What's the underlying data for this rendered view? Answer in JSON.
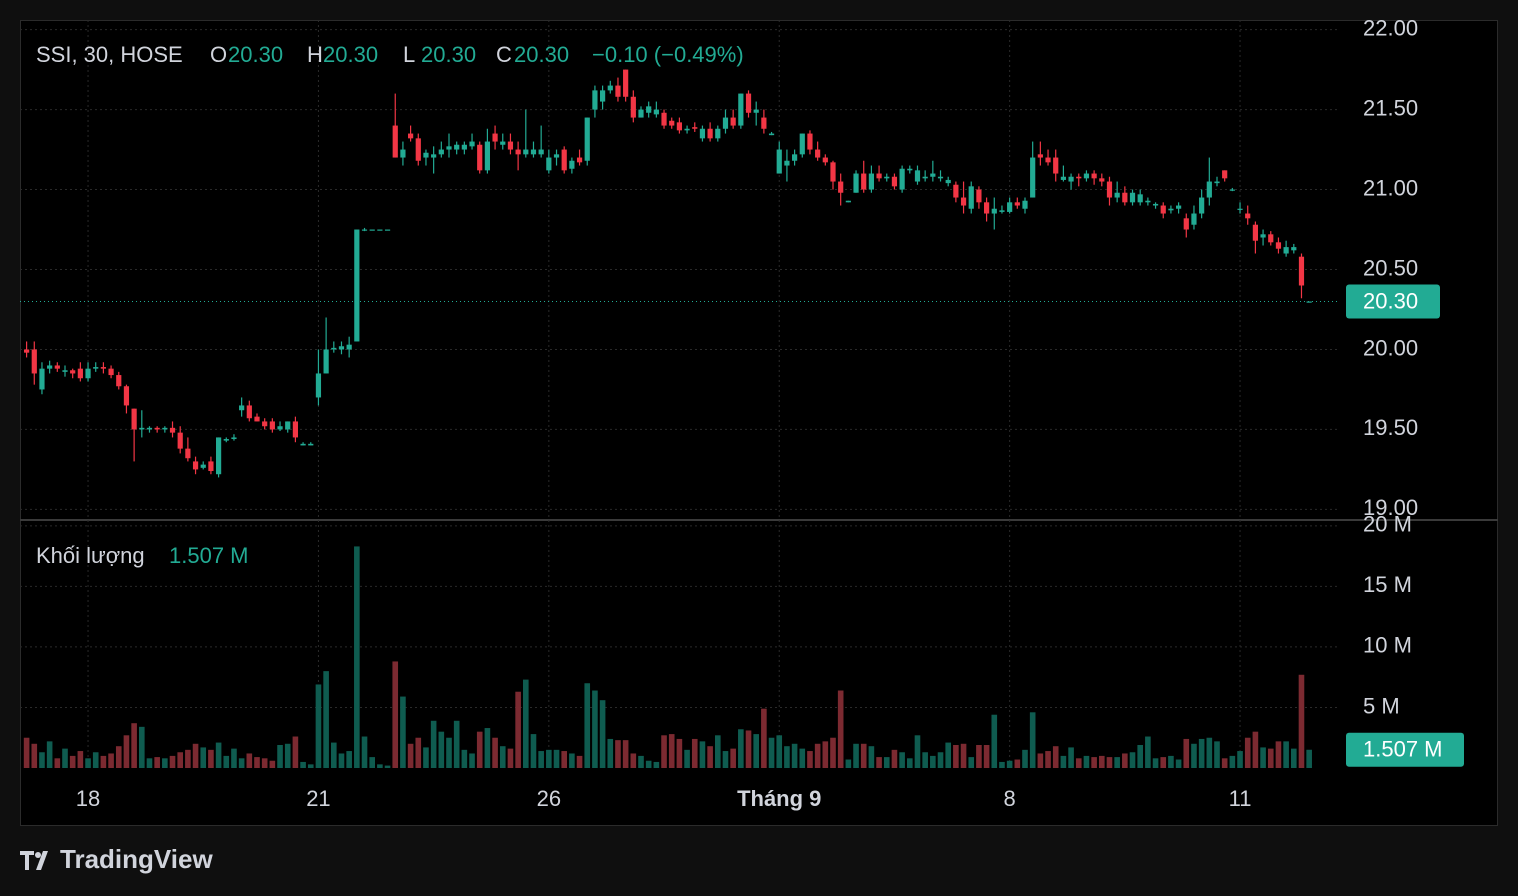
{
  "chart_data": {
    "type": "candlestick",
    "legend": {
      "title": "SSI, 30, HOSE",
      "items": [
        {
          "key": "O",
          "value": "20.30"
        },
        {
          "key": "H",
          "value": "20.30"
        },
        {
          "key": "L",
          "value": "20.30"
        },
        {
          "key": "C",
          "value": "20.30"
        }
      ],
      "change": "−0.10 (−0.49%)"
    },
    "volume_title": "Khối lượng",
    "volume_value": "1.507 M",
    "footer": "TradingView",
    "up_color": "#22ab94",
    "down_color": "#f23645",
    "volume_up_color": "#0f5c50",
    "volume_down_color": "#7c2a31",
    "grid": true,
    "ylim": [
      18.94,
      22.06
    ],
    "yticks": [
      {
        "value": 19,
        "label": "19.00"
      },
      {
        "value": 19.5,
        "label": "19.50"
      },
      {
        "value": 20,
        "label": "20.00"
      },
      {
        "value": 20.5,
        "label": "20.50"
      },
      {
        "value": 21,
        "label": "21.00"
      },
      {
        "value": 21.5,
        "label": "21.50"
      },
      {
        "value": 22,
        "label": "22.00"
      }
    ],
    "last_price": {
      "value": 20.3,
      "label": "20.30"
    },
    "volume_ylim": [
      0,
      20.4
    ],
    "volume_yticks": [
      {
        "value": 5,
        "label": "5 M"
      },
      {
        "value": 10,
        "label": "10 M"
      },
      {
        "value": 15,
        "label": "15 M"
      },
      {
        "value": 20,
        "label": "20 M"
      }
    ],
    "last_volume": {
      "value": 1.507,
      "label": "1.507 M"
    },
    "categories": [
      null,
      null,
      null,
      null,
      null,
      null,
      null,
      null,
      "18",
      null,
      null,
      null,
      null,
      null,
      null,
      null,
      null,
      null,
      null,
      null,
      null,
      null,
      null,
      null,
      null,
      null,
      null,
      null,
      null,
      null,
      null,
      null,
      null,
      null,
      null,
      null,
      null,
      null,
      "21",
      null,
      null,
      null,
      null,
      null,
      null,
      null,
      null,
      null,
      null,
      null,
      null,
      null,
      null,
      null,
      null,
      null,
      null,
      null,
      null,
      null,
      null,
      null,
      null,
      null,
      null,
      null,
      null,
      null,
      "26",
      null,
      null,
      null,
      null,
      null,
      null,
      null,
      null,
      null,
      null,
      null,
      null,
      null,
      null,
      null,
      null,
      null,
      null,
      null,
      null,
      null,
      null,
      null,
      null,
      null,
      null,
      null,
      null,
      null,
      "Tháng 9",
      null,
      null,
      null,
      null,
      null,
      null,
      null,
      null,
      null,
      null,
      null,
      null,
      null,
      null,
      null,
      null,
      null,
      null,
      null,
      null,
      null,
      null,
      null,
      null,
      null,
      null,
      null,
      null,
      null,
      "8",
      null,
      null,
      null,
      null,
      null,
      null,
      null,
      null,
      null,
      null,
      null,
      null,
      null,
      null,
      null,
      null,
      null,
      null,
      null,
      null,
      null,
      null,
      null,
      null,
      null,
      null,
      null,
      null,
      null,
      "11",
      null,
      null,
      null,
      null,
      null,
      null,
      null,
      null,
      null
    ],
    "ohlc": [
      [
        20.0,
        20.05,
        19.95,
        19.98
      ],
      [
        20.0,
        20.05,
        19.78,
        19.85
      ],
      [
        19.75,
        19.92,
        19.72,
        19.88
      ],
      [
        19.88,
        19.93,
        19.85,
        19.9
      ],
      [
        19.9,
        19.92,
        19.86,
        19.88
      ],
      [
        19.86,
        19.9,
        19.83,
        19.87
      ],
      [
        19.87,
        19.88,
        19.82,
        19.85
      ],
      [
        19.88,
        19.92,
        19.8,
        19.82
      ],
      [
        19.82,
        19.92,
        19.8,
        19.88
      ],
      [
        19.88,
        19.92,
        19.86,
        19.89
      ],
      [
        19.89,
        19.92,
        19.85,
        19.88
      ],
      [
        19.88,
        19.9,
        19.82,
        19.84
      ],
      [
        19.84,
        19.86,
        19.75,
        19.77
      ],
      [
        19.77,
        19.78,
        19.6,
        19.65
      ],
      [
        19.63,
        19.63,
        19.3,
        19.5
      ],
      [
        19.5,
        19.62,
        19.45,
        19.51
      ],
      [
        19.5,
        19.52,
        19.48,
        19.51
      ],
      [
        19.51,
        19.52,
        19.48,
        19.5
      ],
      [
        19.5,
        19.52,
        19.48,
        19.51
      ],
      [
        19.51,
        19.55,
        19.45,
        19.48
      ],
      [
        19.48,
        19.52,
        19.35,
        19.38
      ],
      [
        19.38,
        19.45,
        19.3,
        19.32
      ],
      [
        19.3,
        19.33,
        19.22,
        19.25
      ],
      [
        19.26,
        19.3,
        19.25,
        19.28
      ],
      [
        19.3,
        19.33,
        19.22,
        19.24
      ],
      [
        19.22,
        19.45,
        19.2,
        19.45
      ],
      [
        19.43,
        19.45,
        19.42,
        19.44
      ],
      [
        19.44,
        19.47,
        19.43,
        19.45
      ],
      [
        19.62,
        19.7,
        19.58,
        19.65
      ],
      [
        19.65,
        19.68,
        19.55,
        19.57
      ],
      [
        19.58,
        19.6,
        19.55,
        19.55
      ],
      [
        19.55,
        19.57,
        19.5,
        19.52
      ],
      [
        19.55,
        19.57,
        19.48,
        19.5
      ],
      [
        19.5,
        19.55,
        19.49,
        19.52
      ],
      [
        19.5,
        19.55,
        19.48,
        19.55
      ],
      [
        19.55,
        19.58,
        19.42,
        19.45
      ],
      [
        19.4,
        19.42,
        19.4,
        19.41
      ],
      [
        19.4,
        19.42,
        19.4,
        19.41
      ],
      [
        19.7,
        20.0,
        19.65,
        19.85
      ],
      [
        19.85,
        20.2,
        19.85,
        20.0
      ],
      [
        20.0,
        20.05,
        19.98,
        20.01
      ],
      [
        20.0,
        20.05,
        19.97,
        20.02
      ],
      [
        20.0,
        20.08,
        19.95,
        20.03
      ],
      [
        20.05,
        20.75,
        20.05,
        20.75
      ],
      [
        20.75,
        20.76,
        20.74,
        20.75
      ],
      [
        20.75,
        20.75,
        20.75,
        20.75
      ],
      [
        20.75,
        20.75,
        20.75,
        20.75
      ],
      [
        20.75,
        20.75,
        20.75,
        20.75
      ],
      [
        21.4,
        21.6,
        21.2,
        21.2
      ],
      [
        21.2,
        21.3,
        21.15,
        21.25
      ],
      [
        21.35,
        21.4,
        21.3,
        21.32
      ],
      [
        21.32,
        21.35,
        21.15,
        21.18
      ],
      [
        21.2,
        21.25,
        21.15,
        21.23
      ],
      [
        21.2,
        21.27,
        21.1,
        21.22
      ],
      [
        21.22,
        21.3,
        21.2,
        21.25
      ],
      [
        21.25,
        21.35,
        21.2,
        21.27
      ],
      [
        21.25,
        21.3,
        21.22,
        21.28
      ],
      [
        21.25,
        21.3,
        21.22,
        21.28
      ],
      [
        21.27,
        21.35,
        21.25,
        21.3
      ],
      [
        21.28,
        21.3,
        21.1,
        21.12
      ],
      [
        21.12,
        21.38,
        21.1,
        21.3
      ],
      [
        21.35,
        21.4,
        21.25,
        21.3
      ],
      [
        21.28,
        21.35,
        21.25,
        21.3
      ],
      [
        21.3,
        21.35,
        21.22,
        21.25
      ],
      [
        21.25,
        21.3,
        21.12,
        21.22
      ],
      [
        21.22,
        21.5,
        21.2,
        21.25
      ],
      [
        21.22,
        21.3,
        21.2,
        21.25
      ],
      [
        21.22,
        21.4,
        21.2,
        21.25
      ],
      [
        21.12,
        21.25,
        21.1,
        21.2
      ],
      [
        21.2,
        21.25,
        21.15,
        21.22
      ],
      [
        21.25,
        21.27,
        21.1,
        21.12
      ],
      [
        21.13,
        21.2,
        21.1,
        21.18
      ],
      [
        21.2,
        21.25,
        21.15,
        21.17
      ],
      [
        21.18,
        21.45,
        21.15,
        21.45
      ],
      [
        21.5,
        21.65,
        21.45,
        21.62
      ],
      [
        21.55,
        21.65,
        21.5,
        21.62
      ],
      [
        21.62,
        21.68,
        21.6,
        21.65
      ],
      [
        21.65,
        21.7,
        21.55,
        21.58
      ],
      [
        21.75,
        21.75,
        21.55,
        21.58
      ],
      [
        21.58,
        21.62,
        21.42,
        21.45
      ],
      [
        21.45,
        21.52,
        21.45,
        21.5
      ],
      [
        21.48,
        21.55,
        21.45,
        21.52
      ],
      [
        21.47,
        21.55,
        21.45,
        21.5
      ],
      [
        21.48,
        21.5,
        21.38,
        21.4
      ],
      [
        21.43,
        21.45,
        21.38,
        21.4
      ],
      [
        21.42,
        21.45,
        21.35,
        21.37
      ],
      [
        21.37,
        21.4,
        21.35,
        21.38
      ],
      [
        21.39,
        21.42,
        21.36,
        21.38
      ],
      [
        21.32,
        21.4,
        21.3,
        21.38
      ],
      [
        21.38,
        21.42,
        21.3,
        21.32
      ],
      [
        21.32,
        21.4,
        21.3,
        21.38
      ],
      [
        21.38,
        21.5,
        21.35,
        21.45
      ],
      [
        21.45,
        21.5,
        21.38,
        21.4
      ],
      [
        21.4,
        21.6,
        21.38,
        21.6
      ],
      [
        21.6,
        21.62,
        21.45,
        21.48
      ],
      [
        21.48,
        21.55,
        21.4,
        21.5
      ],
      [
        21.45,
        21.5,
        21.35,
        21.38
      ],
      [
        21.34,
        21.36,
        21.34,
        21.35
      ],
      [
        21.1,
        21.3,
        21.1,
        21.25
      ],
      [
        21.15,
        21.25,
        21.05,
        21.18
      ],
      [
        21.18,
        21.25,
        21.15,
        21.22
      ],
      [
        21.22,
        21.35,
        21.2,
        21.35
      ],
      [
        21.35,
        21.37,
        21.22,
        21.25
      ],
      [
        21.25,
        21.3,
        21.18,
        21.2
      ],
      [
        21.2,
        21.22,
        21.15,
        21.17
      ],
      [
        21.17,
        21.18,
        21.0,
        21.05
      ],
      [
        21.05,
        21.1,
        20.9,
        20.98
      ],
      [
        20.92,
        20.93,
        20.92,
        20.93
      ],
      [
        20.98,
        21.12,
        20.98,
        21.1
      ],
      [
        21.1,
        21.18,
        20.98,
        21.0
      ],
      [
        21.0,
        21.15,
        20.98,
        21.1
      ],
      [
        21.1,
        21.15,
        21.05,
        21.07
      ],
      [
        21.07,
        21.1,
        21.05,
        21.08
      ],
      [
        21.08,
        21.1,
        21.0,
        21.02
      ],
      [
        21.0,
        21.15,
        20.98,
        21.13
      ],
      [
        21.12,
        21.15,
        21.1,
        21.13
      ],
      [
        21.05,
        21.15,
        21.03,
        21.12
      ],
      [
        21.07,
        21.12,
        21.05,
        21.08
      ],
      [
        21.08,
        21.18,
        21.05,
        21.1
      ],
      [
        21.07,
        21.12,
        21.05,
        21.08
      ],
      [
        21.04,
        21.08,
        21.02,
        21.06
      ],
      [
        21.03,
        21.05,
        20.92,
        20.95
      ],
      [
        20.95,
        21.05,
        20.85,
        20.9
      ],
      [
        20.88,
        21.05,
        20.85,
        21.02
      ],
      [
        21.0,
        21.02,
        20.88,
        20.92
      ],
      [
        20.92,
        20.95,
        20.8,
        20.85
      ],
      [
        20.85,
        20.95,
        20.75,
        20.88
      ],
      [
        20.86,
        20.9,
        20.85,
        20.87
      ],
      [
        20.86,
        20.95,
        20.85,
        20.92
      ],
      [
        20.92,
        20.95,
        20.88,
        20.9
      ],
      [
        20.88,
        20.95,
        20.85,
        20.93
      ],
      [
        20.95,
        21.3,
        20.95,
        21.2
      ],
      [
        21.22,
        21.3,
        21.15,
        21.2
      ],
      [
        21.2,
        21.25,
        21.15,
        21.17
      ],
      [
        21.2,
        21.25,
        21.05,
        21.1
      ],
      [
        21.06,
        21.15,
        21.05,
        21.08
      ],
      [
        21.05,
        21.1,
        21.0,
        21.08
      ],
      [
        21.08,
        21.1,
        21.02,
        21.07
      ],
      [
        21.07,
        21.12,
        21.05,
        21.1
      ],
      [
        21.1,
        21.12,
        21.03,
        21.07
      ],
      [
        21.07,
        21.1,
        21.02,
        21.05
      ],
      [
        21.05,
        21.08,
        20.9,
        20.95
      ],
      [
        20.95,
        21.05,
        20.92,
        20.98
      ],
      [
        20.98,
        21.02,
        20.9,
        20.92
      ],
      [
        20.92,
        21.0,
        20.9,
        20.98
      ],
      [
        20.92,
        21.0,
        20.9,
        20.97
      ],
      [
        20.92,
        20.95,
        20.9,
        20.93
      ],
      [
        20.9,
        20.92,
        20.88,
        20.91
      ],
      [
        20.9,
        20.92,
        20.82,
        20.85
      ],
      [
        20.87,
        20.9,
        20.85,
        20.88
      ],
      [
        20.88,
        20.92,
        20.85,
        20.9
      ],
      [
        20.82,
        20.85,
        20.7,
        20.75
      ],
      [
        20.78,
        20.9,
        20.75,
        20.85
      ],
      [
        20.85,
        21.0,
        20.82,
        20.95
      ],
      [
        20.95,
        21.2,
        20.9,
        21.05
      ],
      [
        21.04,
        21.08,
        21.02,
        21.05
      ],
      [
        21.12,
        21.12,
        21.05,
        21.07
      ],
      [
        21.0,
        21.01,
        20.99,
        21.0
      ],
      [
        20.88,
        20.92,
        20.85,
        20.88
      ],
      [
        20.85,
        20.9,
        20.78,
        20.82
      ],
      [
        20.78,
        20.8,
        20.6,
        20.68
      ],
      [
        20.7,
        20.75,
        20.65,
        20.72
      ],
      [
        20.72,
        20.74,
        20.65,
        20.67
      ],
      [
        20.67,
        20.7,
        20.6,
        20.63
      ],
      [
        20.6,
        20.68,
        20.58,
        20.64
      ],
      [
        20.62,
        20.66,
        20.6,
        20.64
      ],
      [
        20.58,
        20.6,
        20.32,
        20.4
      ],
      [
        20.3,
        20.3,
        20.3,
        20.3
      ]
    ],
    "volume": [
      2.5,
      2.0,
      1.3,
      2.2,
      0.8,
      1.6,
      1.0,
      1.4,
      0.8,
      1.3,
      1.0,
      1.2,
      1.8,
      2.7,
      3.7,
      3.4,
      0.8,
      0.9,
      0.8,
      1.0,
      1.3,
      1.5,
      2.0,
      1.7,
      1.5,
      2.1,
      1.0,
      1.6,
      0.8,
      1.2,
      0.9,
      0.8,
      0.6,
      1.9,
      2.0,
      2.6,
      0.5,
      0.3,
      6.9,
      8.0,
      2.1,
      1.2,
      1.4,
      18.3,
      2.6,
      0.9,
      0.3,
      0.2,
      8.8,
      5.9,
      2.0,
      2.5,
      1.7,
      3.9,
      3.0,
      2.5,
      3.9,
      1.5,
      1.2,
      3.0,
      3.3,
      2.5,
      1.8,
      1.6,
      6.3,
      7.3,
      2.8,
      1.4,
      1.5,
      1.5,
      1.4,
      1.2,
      1.0,
      7.0,
      6.4,
      5.6,
      2.4,
      2.3,
      2.3,
      1.2,
      1.0,
      0.6,
      0.5,
      2.7,
      2.8,
      2.4,
      1.5,
      2.4,
      2.2,
      1.8,
      2.7,
      1.4,
      1.6,
      3.2,
      3.1,
      2.8,
      4.9,
      2.5,
      2.7,
      1.8,
      2.0,
      1.6,
      1.4,
      2.0,
      2.2,
      2.5,
      6.4,
      0.7,
      2.0,
      2.0,
      1.8,
      0.9,
      0.9,
      1.5,
      1.3,
      0.8,
      2.7,
      1.3,
      1.0,
      1.3,
      2.1,
      1.9,
      2.0,
      0.9,
      1.9,
      1.9,
      4.4,
      0.5,
      0.6,
      0.7,
      1.5,
      4.6,
      1.2,
      1.4,
      1.8,
      1.0,
      1.7,
      0.8,
      1.0,
      0.9,
      1.0,
      0.9,
      0.9,
      1.2,
      1.3,
      1.9,
      2.6,
      0.8,
      0.9,
      1.0,
      0.7,
      2.4,
      2.0,
      2.4,
      2.5,
      2.2,
      0.8,
      1.0,
      1.4,
      2.5,
      3.0,
      1.7,
      1.6,
      2.2,
      2.2,
      1.6,
      7.7,
      1.507
    ]
  }
}
